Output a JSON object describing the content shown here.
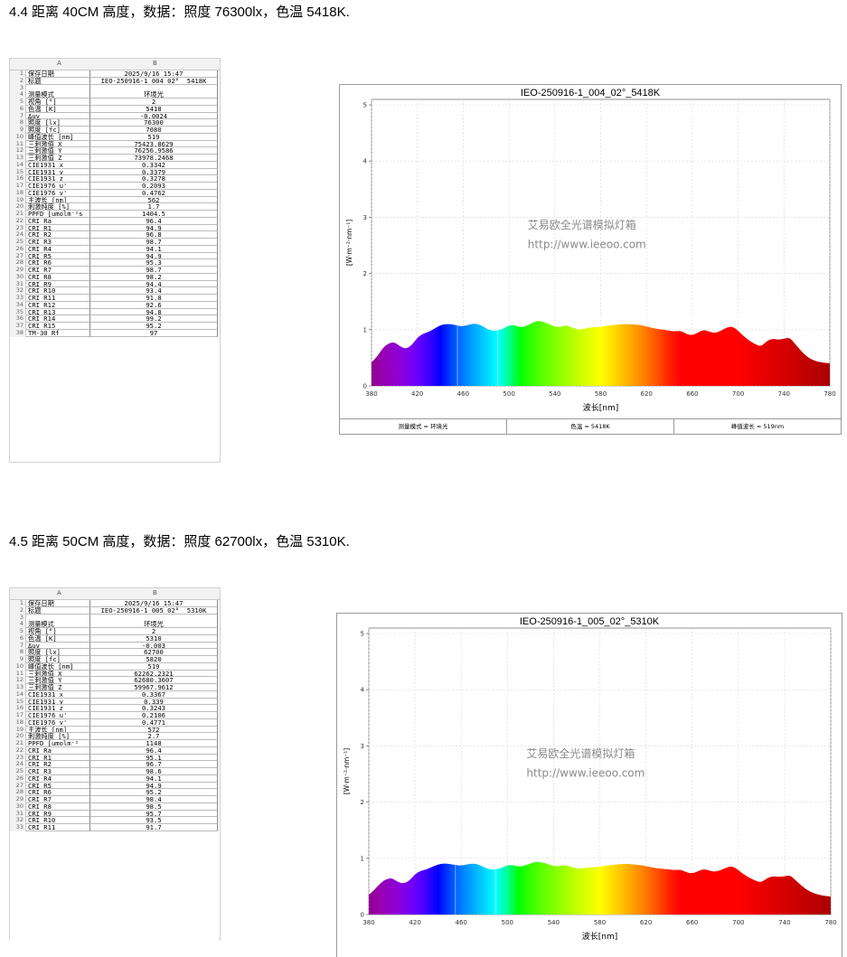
{
  "sections": [
    {
      "heading": "4.4  距离 40CM 高度，数据：照度 76300lx，色温 5418K.",
      "sheet": {
        "col_a": "A",
        "col_b": "B",
        "rows": [
          [
            "1",
            "保存日期",
            "2025/9/16 15:47"
          ],
          [
            "2",
            "标题",
            "IEO-250916-1_004_02° _5418K"
          ],
          [
            "3",
            "",
            ""
          ],
          [
            "4",
            "测量模式",
            "环境光"
          ],
          [
            "5",
            "视角 [°]",
            "2"
          ],
          [
            "6",
            "色温 [K]",
            "5418"
          ],
          [
            "7",
            "Δuv",
            "-0.0024"
          ],
          [
            "8",
            "照度 [lx]",
            "76300"
          ],
          [
            "9",
            "照度 [fc]",
            "7080"
          ],
          [
            "10",
            "峰值波长 [nm]",
            "519"
          ],
          [
            "11",
            "三刺激值 X",
            "75423.8629"
          ],
          [
            "12",
            "三刺激值 Y",
            "76256.9586"
          ],
          [
            "13",
            "三刺激值 Z",
            "73978.2468"
          ],
          [
            "14",
            "CIE1931 x",
            "0.3342"
          ],
          [
            "15",
            "CIE1931 y",
            "0.3379"
          ],
          [
            "16",
            "CIE1931 z",
            "0.3278"
          ],
          [
            "17",
            "CIE1976 u'",
            "0.2093"
          ],
          [
            "18",
            "CIE1976 v'",
            "0.4762"
          ],
          [
            "19",
            "主波长 [nm]",
            "562"
          ],
          [
            "20",
            "刺激纯度 [%]",
            "1.7"
          ],
          [
            "21",
            "PPFD [umolm⁻²s",
            "1404.5"
          ],
          [
            "22",
            "CRI Ra",
            "96.4"
          ],
          [
            "23",
            "CRI R1",
            "94.9"
          ],
          [
            "24",
            "CRI R2",
            "96.8"
          ],
          [
            "25",
            "CRI R3",
            "98.7"
          ],
          [
            "26",
            "CRI R4",
            "94.1"
          ],
          [
            "27",
            "CRI R5",
            "94.9"
          ],
          [
            "28",
            "CRI R6",
            "95.3"
          ],
          [
            "29",
            "CRI R7",
            "98.7"
          ],
          [
            "30",
            "CRI R8",
            "98.2"
          ],
          [
            "31",
            "CRI R9",
            "94.4"
          ],
          [
            "32",
            "CRI R10",
            "93.4"
          ],
          [
            "33",
            "CRI R11",
            "91.8"
          ],
          [
            "34",
            "CRI R12",
            "92.6"
          ],
          [
            "35",
            "CRI R13",
            "94.8"
          ],
          [
            "36",
            "CRI R14",
            "99.2"
          ],
          [
            "37",
            "CRI R15",
            "95.2"
          ],
          [
            "38",
            "TM-30 Rf",
            "97"
          ]
        ]
      },
      "chart": {
        "title": "IEO-250916-1_004_02°_5418K",
        "ylabel": "[W·m⁻²·nm⁻¹]",
        "xlabel": "波长[nm]",
        "watermark_line1": "艾易欧全光谱模拟灯箱",
        "watermark_line2": "http://www.ieeoo.com",
        "footer": [
          "测量模式 = 环境光",
          "色温 = 5418K",
          "峰值波长 = 519nm"
        ]
      }
    },
    {
      "heading": "4.5  距离 50CM 高度，数据：照度 62700lx，色温 5310K.",
      "sheet": {
        "col_a": "A",
        "col_b": "B",
        "rows": [
          [
            "1",
            "保存日期",
            "2025/9/16 15:47"
          ],
          [
            "2",
            "标题",
            "IEO-250916-1_005_02° _5310K"
          ],
          [
            "3",
            "",
            ""
          ],
          [
            "4",
            "测量模式",
            "环境光"
          ],
          [
            "5",
            "视角 [°]",
            "2"
          ],
          [
            "6",
            "色温 [K]",
            "5310"
          ],
          [
            "7",
            "Δuv",
            "-0.003"
          ],
          [
            "8",
            "照度 [lx]",
            "62700"
          ],
          [
            "9",
            "照度 [fc]",
            "5820"
          ],
          [
            "10",
            "峰值波长 [nm]",
            "519"
          ],
          [
            "11",
            "三刺激值 X",
            "62262.2321"
          ],
          [
            "12",
            "三刺激值 Y",
            "62680.3607"
          ],
          [
            "13",
            "三刺激值 Z",
            "59967.9612"
          ],
          [
            "14",
            "CIE1931 x",
            "0.3367"
          ],
          [
            "15",
            "CIE1931 y",
            "0.339"
          ],
          [
            "16",
            "CIE1931 z",
            "0.3243"
          ],
          [
            "17",
            "CIE1976 u'",
            "0.2106"
          ],
          [
            "18",
            "CIE1976 v'",
            "0.4771"
          ],
          [
            "19",
            "主波长 [nm]",
            "572"
          ],
          [
            "20",
            "刺激纯度 [%]",
            "2.7"
          ],
          [
            "21",
            "PPFD [umolm⁻²",
            "1148"
          ],
          [
            "22",
            "CRI Ra",
            "96.4"
          ],
          [
            "23",
            "CRI R1",
            "95.1"
          ],
          [
            "24",
            "CRI R2",
            "96.7"
          ],
          [
            "25",
            "CRI R3",
            "98.6"
          ],
          [
            "26",
            "CRI R4",
            "94.1"
          ],
          [
            "27",
            "CRI R5",
            "94.9"
          ],
          [
            "28",
            "CRI R6",
            "95.2"
          ],
          [
            "29",
            "CRI R7",
            "98.4"
          ],
          [
            "30",
            "CRI R8",
            "98.5"
          ],
          [
            "31",
            "CRI R9",
            "95.7"
          ],
          [
            "32",
            "CRI R10",
            "93.5"
          ],
          [
            "33",
            "CRI R11",
            "91.7"
          ]
        ]
      },
      "chart": {
        "title": "IEO-250916-1_005_02°_5310K",
        "ylabel": "[W·m⁻²·nm⁻¹]",
        "xlabel": "波长[nm]",
        "watermark_line1": "艾易欧全光谱模拟灯箱",
        "watermark_line2": "http://www.ieeoo.com",
        "footer": []
      }
    }
  ],
  "chart_data": [
    {
      "type": "area",
      "title": "IEO-250916-1_004_02°_5418K",
      "xlabel": "波长[nm]",
      "ylabel": "[W·m⁻²·nm⁻¹]",
      "xlim": [
        380,
        780
      ],
      "ylim": [
        0,
        5
      ],
      "xticks": [
        380,
        420,
        460,
        500,
        540,
        580,
        620,
        660,
        700,
        740,
        780
      ],
      "yticks": [
        0,
        1,
        2,
        3,
        4,
        5
      ],
      "grid": true,
      "x": [
        380,
        385,
        390,
        395,
        400,
        405,
        410,
        415,
        420,
        425,
        430,
        435,
        440,
        445,
        450,
        455,
        460,
        465,
        470,
        475,
        480,
        485,
        490,
        495,
        500,
        505,
        510,
        515,
        520,
        525,
        530,
        535,
        540,
        545,
        550,
        555,
        560,
        565,
        570,
        575,
        580,
        585,
        590,
        595,
        600,
        605,
        610,
        615,
        620,
        625,
        630,
        635,
        640,
        645,
        650,
        655,
        660,
        665,
        670,
        675,
        680,
        685,
        690,
        695,
        700,
        705,
        710,
        715,
        720,
        725,
        730,
        735,
        740,
        745,
        750,
        755,
        760,
        765,
        770,
        775,
        780
      ],
      "y": [
        0.42,
        0.52,
        0.68,
        0.76,
        0.78,
        0.7,
        0.66,
        0.72,
        0.86,
        0.93,
        0.96,
        1.02,
        1.08,
        1.1,
        1.1,
        1.07,
        1.06,
        1.09,
        1.11,
        1.09,
        1.02,
        0.98,
        0.98,
        1.02,
        1.08,
        1.08,
        1.04,
        1.06,
        1.12,
        1.16,
        1.14,
        1.1,
        1.05,
        1.05,
        1.08,
        1.04,
        1.0,
        1.01,
        1.04,
        1.04,
        1.05,
        1.07,
        1.08,
        1.09,
        1.1,
        1.1,
        1.09,
        1.08,
        1.06,
        1.03,
        1.01,
        1.0,
        0.98,
        0.97,
        0.98,
        0.92,
        0.9,
        0.95,
        1.0,
        0.96,
        0.94,
        0.98,
        1.04,
        1.06,
        0.98,
        0.88,
        0.8,
        0.74,
        0.7,
        0.8,
        0.84,
        0.82,
        0.84,
        0.86,
        0.74,
        0.62,
        0.52,
        0.46,
        0.43,
        0.41,
        0.4
      ],
      "markers": [
        455,
        490
      ],
      "footer": [
        "测量模式 = 环境光",
        "色温 = 5418K",
        "峰值波长 = 519nm"
      ]
    },
    {
      "type": "area",
      "title": "IEO-250916-1_005_02°_5310K",
      "xlabel": "波长[nm]",
      "ylabel": "[W·m⁻²·nm⁻¹]",
      "xlim": [
        380,
        780
      ],
      "ylim": [
        0,
        5
      ],
      "xticks": [
        380,
        420,
        460,
        500,
        540,
        580,
        620,
        660,
        700,
        740,
        780
      ],
      "yticks": [
        0,
        1,
        2,
        3,
        4,
        5
      ],
      "grid": true,
      "x": [
        380,
        385,
        390,
        395,
        400,
        405,
        410,
        415,
        420,
        425,
        430,
        435,
        440,
        445,
        450,
        455,
        460,
        465,
        470,
        475,
        480,
        485,
        490,
        495,
        500,
        505,
        510,
        515,
        520,
        525,
        530,
        535,
        540,
        545,
        550,
        555,
        560,
        565,
        570,
        575,
        580,
        585,
        590,
        595,
        600,
        605,
        610,
        615,
        620,
        625,
        630,
        635,
        640,
        645,
        650,
        655,
        660,
        665,
        670,
        675,
        680,
        685,
        690,
        695,
        700,
        705,
        710,
        715,
        720,
        725,
        730,
        735,
        740,
        745,
        750,
        755,
        760,
        765,
        770,
        775,
        780
      ],
      "y": [
        0.35,
        0.44,
        0.56,
        0.63,
        0.65,
        0.58,
        0.55,
        0.6,
        0.72,
        0.78,
        0.8,
        0.85,
        0.89,
        0.91,
        0.9,
        0.88,
        0.87,
        0.89,
        0.91,
        0.89,
        0.84,
        0.8,
        0.8,
        0.83,
        0.88,
        0.88,
        0.85,
        0.87,
        0.91,
        0.94,
        0.93,
        0.9,
        0.86,
        0.86,
        0.88,
        0.85,
        0.82,
        0.82,
        0.84,
        0.84,
        0.85,
        0.87,
        0.88,
        0.89,
        0.9,
        0.9,
        0.89,
        0.88,
        0.86,
        0.84,
        0.82,
        0.81,
        0.8,
        0.79,
        0.8,
        0.75,
        0.73,
        0.77,
        0.81,
        0.78,
        0.76,
        0.79,
        0.84,
        0.86,
        0.79,
        0.71,
        0.65,
        0.6,
        0.57,
        0.65,
        0.68,
        0.67,
        0.68,
        0.7,
        0.6,
        0.51,
        0.43,
        0.38,
        0.35,
        0.33,
        0.32
      ],
      "markers": [
        455,
        490
      ],
      "footer": []
    }
  ]
}
